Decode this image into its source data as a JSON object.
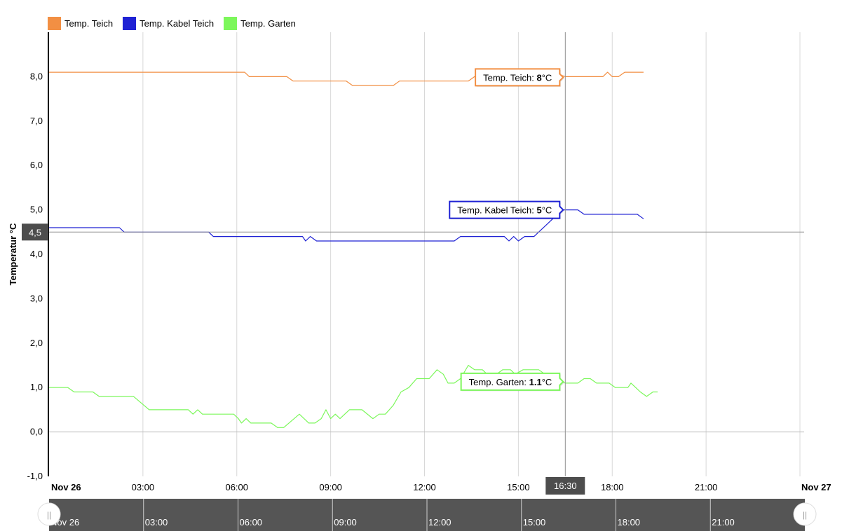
{
  "chart_data": {
    "type": "line",
    "ylabel": "Temperatur °C",
    "ylim": [
      -1,
      9
    ],
    "yticks": [
      -1,
      0,
      1,
      2,
      3,
      4,
      5,
      6,
      7,
      8
    ],
    "ytick_labels": [
      "-1,0",
      "0,0",
      "1,0",
      "2,0",
      "3,0",
      "4,0",
      "5,0",
      "6,0",
      "7,0",
      "8,0"
    ],
    "xlim_hours": [
      0,
      24
    ],
    "xticks": [
      {
        "h": 0,
        "label": "Nov 26",
        "bold": true
      },
      {
        "h": 3,
        "label": "03:00"
      },
      {
        "h": 6,
        "label": "06:00"
      },
      {
        "h": 9,
        "label": "09:00"
      },
      {
        "h": 12,
        "label": "12:00"
      },
      {
        "h": 15,
        "label": "15:00"
      },
      {
        "h": 18,
        "label": "18:00"
      },
      {
        "h": 21,
        "label": "21:00"
      },
      {
        "h": 24,
        "label": "Nov 27",
        "bold": true
      }
    ],
    "grid": true,
    "legend_position": "top-left",
    "crosshair": {
      "x_hour": 16.5,
      "x_label": "16:30",
      "y_value": 4.5,
      "y_label": "4,5"
    },
    "series": [
      {
        "name": "Temp. Teich",
        "color": "#f28f43",
        "tooltip": {
          "label": "Temp. Teich: ",
          "value": "8",
          "unit": "°C"
        },
        "points": [
          [
            0,
            8.1
          ],
          [
            6.25,
            8.1
          ],
          [
            6.4,
            8.0
          ],
          [
            7.6,
            8.0
          ],
          [
            7.8,
            7.9
          ],
          [
            9.5,
            7.9
          ],
          [
            9.7,
            7.8
          ],
          [
            11.0,
            7.8
          ],
          [
            11.2,
            7.9
          ],
          [
            13.4,
            7.9
          ],
          [
            13.6,
            8.0
          ],
          [
            15.5,
            8.0
          ],
          [
            15.7,
            8.1
          ],
          [
            16.1,
            8.1
          ],
          [
            16.5,
            8.0
          ],
          [
            17.7,
            8.0
          ],
          [
            17.85,
            8.1
          ],
          [
            18.0,
            8.0
          ],
          [
            18.2,
            8.0
          ],
          [
            18.4,
            8.1
          ],
          [
            19.0,
            8.1
          ]
        ]
      },
      {
        "name": "Temp. Kabel Teich",
        "color": "#1f22d4",
        "tooltip": {
          "label": "Temp. Kabel Teich: ",
          "value": "5",
          "unit": "°C"
        },
        "points": [
          [
            0,
            4.6
          ],
          [
            2.25,
            4.6
          ],
          [
            2.4,
            4.5
          ],
          [
            5.1,
            4.5
          ],
          [
            5.25,
            4.4
          ],
          [
            8.1,
            4.4
          ],
          [
            8.2,
            4.3
          ],
          [
            8.35,
            4.4
          ],
          [
            8.55,
            4.3
          ],
          [
            12.95,
            4.3
          ],
          [
            13.15,
            4.4
          ],
          [
            14.55,
            4.4
          ],
          [
            14.7,
            4.3
          ],
          [
            14.85,
            4.4
          ],
          [
            15.0,
            4.3
          ],
          [
            15.2,
            4.4
          ],
          [
            15.5,
            4.4
          ],
          [
            16.1,
            4.8
          ],
          [
            16.35,
            5.0
          ],
          [
            16.9,
            5.0
          ],
          [
            17.1,
            4.9
          ],
          [
            18.8,
            4.9
          ],
          [
            19.0,
            4.8
          ]
        ]
      },
      {
        "name": "Temp. Garten",
        "color": "#7cf75b",
        "tooltip": {
          "label": "Temp. Garten: ",
          "value": "1.1",
          "unit": "°C"
        },
        "points": [
          [
            0,
            1.0
          ],
          [
            0.6,
            1.0
          ],
          [
            0.8,
            0.9
          ],
          [
            1.4,
            0.9
          ],
          [
            1.6,
            0.8
          ],
          [
            2.7,
            0.8
          ],
          [
            3.2,
            0.5
          ],
          [
            4.45,
            0.5
          ],
          [
            4.6,
            0.4
          ],
          [
            4.75,
            0.5
          ],
          [
            4.9,
            0.4
          ],
          [
            5.9,
            0.4
          ],
          [
            6.05,
            0.3
          ],
          [
            6.15,
            0.2
          ],
          [
            6.3,
            0.3
          ],
          [
            6.45,
            0.2
          ],
          [
            7.1,
            0.2
          ],
          [
            7.3,
            0.1
          ],
          [
            7.5,
            0.1
          ],
          [
            8.0,
            0.4
          ],
          [
            8.3,
            0.2
          ],
          [
            8.5,
            0.2
          ],
          [
            8.7,
            0.3
          ],
          [
            8.85,
            0.5
          ],
          [
            9.0,
            0.3
          ],
          [
            9.15,
            0.4
          ],
          [
            9.3,
            0.3
          ],
          [
            9.6,
            0.5
          ],
          [
            10.0,
            0.5
          ],
          [
            10.35,
            0.3
          ],
          [
            10.55,
            0.4
          ],
          [
            10.75,
            0.4
          ],
          [
            11.0,
            0.6
          ],
          [
            11.25,
            0.9
          ],
          [
            11.5,
            1.0
          ],
          [
            11.75,
            1.2
          ],
          [
            12.15,
            1.2
          ],
          [
            12.4,
            1.4
          ],
          [
            12.6,
            1.3
          ],
          [
            12.75,
            1.1
          ],
          [
            12.95,
            1.1
          ],
          [
            13.15,
            1.2
          ],
          [
            13.4,
            1.5
          ],
          [
            13.6,
            1.4
          ],
          [
            13.85,
            1.4
          ],
          [
            14.0,
            1.3
          ],
          [
            14.3,
            1.3
          ],
          [
            14.5,
            1.4
          ],
          [
            14.75,
            1.4
          ],
          [
            14.9,
            1.3
          ],
          [
            15.15,
            1.4
          ],
          [
            15.65,
            1.4
          ],
          [
            15.85,
            1.3
          ],
          [
            16.2,
            1.2
          ],
          [
            16.5,
            1.1
          ],
          [
            16.9,
            1.1
          ],
          [
            17.1,
            1.2
          ],
          [
            17.3,
            1.2
          ],
          [
            17.5,
            1.1
          ],
          [
            17.9,
            1.1
          ],
          [
            18.1,
            1.0
          ],
          [
            18.5,
            1.0
          ],
          [
            18.6,
            1.1
          ],
          [
            18.75,
            1.0
          ],
          [
            18.9,
            0.9
          ],
          [
            19.1,
            0.8
          ],
          [
            19.3,
            0.9
          ],
          [
            19.45,
            0.9
          ]
        ]
      }
    ],
    "navigator": {
      "labels": [
        {
          "h": 0,
          "label": "Nov 26"
        },
        {
          "h": 3,
          "label": "03:00"
        },
        {
          "h": 6,
          "label": "06:00"
        },
        {
          "h": 9,
          "label": "09:00"
        },
        {
          "h": 12,
          "label": "12:00"
        },
        {
          "h": 15,
          "label": "15:00"
        },
        {
          "h": 18,
          "label": "18:00"
        },
        {
          "h": 21,
          "label": "21:00"
        }
      ],
      "handle_glyph": "||"
    }
  }
}
